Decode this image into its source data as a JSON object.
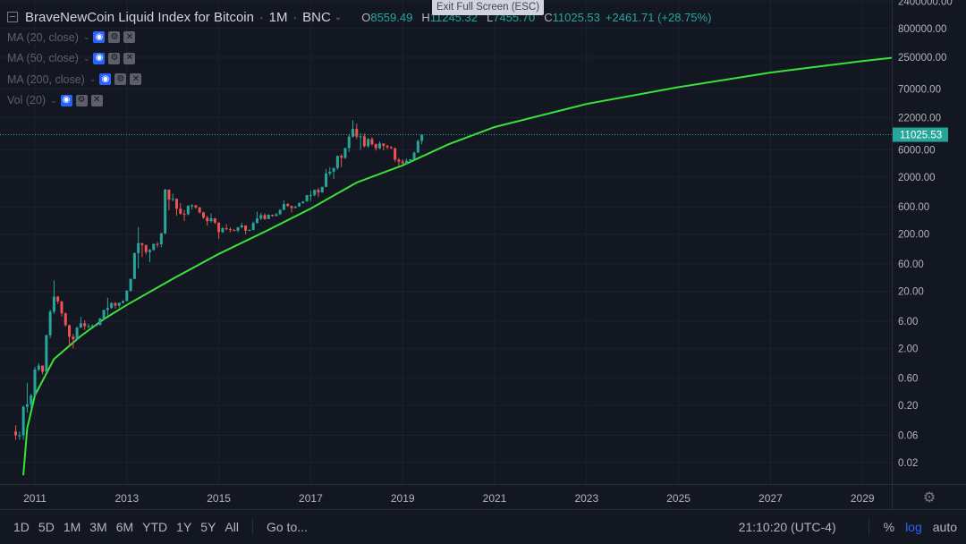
{
  "legend": {
    "symbol": "BraveNewCoin Liquid Index for Bitcoin",
    "interval": "1M",
    "exchange": "BNC",
    "open_label": "O",
    "open": "8559.49",
    "high_label": "H",
    "high": "11245.32",
    "low_label": "L",
    "low": "7455.70",
    "close_label": "C",
    "close": "11025.53",
    "change": "+2461.71 (+28.75%)",
    "studies": [
      "MA (20, close)",
      "MA (50, close)",
      "MA (200, close)",
      "Vol (20)"
    ]
  },
  "tooltip": "Exit Full Screen (ESC)",
  "price_axis": {
    "labels": [
      "2400000.00",
      "800000.00",
      "250000.00",
      "70000.00",
      "22000.00",
      "6000.00",
      "2000.00",
      "600.00",
      "200.00",
      "60.00",
      "20.00",
      "6.00",
      "2.00",
      "0.60",
      "0.20",
      "0.06",
      "0.02"
    ],
    "current_price": "11025.53"
  },
  "time_axis": {
    "labels": [
      "2011",
      "2013",
      "2015",
      "2017",
      "2019",
      "2021",
      "2023",
      "2025",
      "2027",
      "2029"
    ]
  },
  "bottom_bar": {
    "ranges": [
      "1D",
      "5D",
      "1M",
      "3M",
      "6M",
      "YTD",
      "1Y",
      "5Y",
      "All"
    ],
    "goto": "Go to...",
    "clock": "21:10:20 (UTC-4)",
    "percent": "%",
    "log": "log",
    "auto": "auto"
  },
  "colors": {
    "background": "#131722",
    "up": "#26a69a",
    "down": "#ef5350",
    "curve": "#39e339",
    "accent": "#2962ff"
  },
  "chart_data": {
    "type": "candlestick",
    "scale": "log",
    "interval": "1M",
    "x_range": [
      "2010-07",
      "2029-12"
    ],
    "y_range": [
      0.01,
      2400000
    ],
    "current_price": 11025.53,
    "candles": [
      {
        "t": "2010-08",
        "o": 0.07,
        "h": 0.09,
        "l": 0.05,
        "c": 0.06
      },
      {
        "t": "2010-09",
        "o": 0.06,
        "h": 0.07,
        "l": 0.05,
        "c": 0.06
      },
      {
        "t": "2010-10",
        "o": 0.06,
        "h": 0.2,
        "l": 0.05,
        "c": 0.19
      },
      {
        "t": "2010-11",
        "o": 0.19,
        "h": 0.5,
        "l": 0.15,
        "c": 0.21
      },
      {
        "t": "2010-12",
        "o": 0.21,
        "h": 0.32,
        "l": 0.18,
        "c": 0.3
      },
      {
        "t": "2011-01",
        "o": 0.3,
        "h": 0.95,
        "l": 0.29,
        "c": 0.85
      },
      {
        "t": "2011-02",
        "o": 0.85,
        "h": 1.1,
        "l": 0.8,
        "c": 1.0
      },
      {
        "t": "2011-03",
        "o": 1.0,
        "h": 1.0,
        "l": 0.7,
        "c": 0.78
      },
      {
        "t": "2011-04",
        "o": 0.78,
        "h": 3.5,
        "l": 0.75,
        "c": 3.4
      },
      {
        "t": "2011-05",
        "o": 3.4,
        "h": 9.5,
        "l": 3.0,
        "c": 8.8
      },
      {
        "t": "2011-06",
        "o": 8.8,
        "h": 31,
        "l": 8.0,
        "c": 16.1
      },
      {
        "t": "2011-07",
        "o": 16.1,
        "h": 16.5,
        "l": 12.0,
        "c": 13.3
      },
      {
        "t": "2011-08",
        "o": 13.3,
        "h": 13.5,
        "l": 7.2,
        "c": 8.2
      },
      {
        "t": "2011-09",
        "o": 8.2,
        "h": 8.5,
        "l": 4.8,
        "c": 5.1
      },
      {
        "t": "2011-10",
        "o": 5.1,
        "h": 5.2,
        "l": 2.2,
        "c": 3.2
      },
      {
        "t": "2011-11",
        "o": 3.2,
        "h": 3.6,
        "l": 2.0,
        "c": 2.9
      },
      {
        "t": "2011-12",
        "o": 2.9,
        "h": 4.8,
        "l": 2.8,
        "c": 4.6
      },
      {
        "t": "2012-01",
        "o": 4.6,
        "h": 7.1,
        "l": 4.6,
        "c": 5.5
      },
      {
        "t": "2012-02",
        "o": 5.5,
        "h": 6.2,
        "l": 4.2,
        "c": 4.9
      },
      {
        "t": "2012-03",
        "o": 4.9,
        "h": 5.4,
        "l": 4.5,
        "c": 4.9
      },
      {
        "t": "2012-04",
        "o": 4.9,
        "h": 5.3,
        "l": 4.8,
        "c": 5.0
      },
      {
        "t": "2012-05",
        "o": 5.0,
        "h": 5.2,
        "l": 4.9,
        "c": 5.1
      },
      {
        "t": "2012-06",
        "o": 5.1,
        "h": 6.8,
        "l": 5.1,
        "c": 6.7
      },
      {
        "t": "2012-07",
        "o": 6.7,
        "h": 9.5,
        "l": 6.5,
        "c": 9.4
      },
      {
        "t": "2012-08",
        "o": 9.4,
        "h": 15.4,
        "l": 7.5,
        "c": 10.2
      },
      {
        "t": "2012-09",
        "o": 10.2,
        "h": 12.9,
        "l": 9.8,
        "c": 12.4
      },
      {
        "t": "2012-10",
        "o": 12.4,
        "h": 13.0,
        "l": 9.9,
        "c": 11.2
      },
      {
        "t": "2012-11",
        "o": 11.2,
        "h": 12.6,
        "l": 10.2,
        "c": 12.6
      },
      {
        "t": "2012-12",
        "o": 12.6,
        "h": 13.9,
        "l": 12.2,
        "c": 13.5
      },
      {
        "t": "2013-01",
        "o": 13.5,
        "h": 21.0,
        "l": 13.2,
        "c": 20.4
      },
      {
        "t": "2013-02",
        "o": 20.4,
        "h": 33.0,
        "l": 19.5,
        "c": 33.0
      },
      {
        "t": "2013-03",
        "o": 33.0,
        "h": 95.0,
        "l": 32.5,
        "c": 93.0
      },
      {
        "t": "2013-04",
        "o": 93.0,
        "h": 266,
        "l": 50,
        "c": 139
      },
      {
        "t": "2013-05",
        "o": 139,
        "h": 140,
        "l": 79,
        "c": 129
      },
      {
        "t": "2013-06",
        "o": 129,
        "h": 130,
        "l": 88,
        "c": 97
      },
      {
        "t": "2013-07",
        "o": 97,
        "h": 110,
        "l": 65,
        "c": 106
      },
      {
        "t": "2013-08",
        "o": 106,
        "h": 137,
        "l": 102,
        "c": 135
      },
      {
        "t": "2013-09",
        "o": 135,
        "h": 146,
        "l": 117,
        "c": 133
      },
      {
        "t": "2013-10",
        "o": 133,
        "h": 213,
        "l": 118,
        "c": 206
      },
      {
        "t": "2013-11",
        "o": 206,
        "h": 1240,
        "l": 198,
        "c": 1205
      },
      {
        "t": "2013-12",
        "o": 1205,
        "h": 1160,
        "l": 522,
        "c": 805
      },
      {
        "t": "2014-01",
        "o": 805,
        "h": 1020,
        "l": 750,
        "c": 830
      },
      {
        "t": "2014-02",
        "o": 830,
        "h": 840,
        "l": 420,
        "c": 560
      },
      {
        "t": "2014-03",
        "o": 560,
        "h": 700,
        "l": 440,
        "c": 455
      },
      {
        "t": "2014-04",
        "o": 455,
        "h": 530,
        "l": 340,
        "c": 445
      },
      {
        "t": "2014-05",
        "o": 445,
        "h": 640,
        "l": 430,
        "c": 630
      },
      {
        "t": "2014-06",
        "o": 630,
        "h": 670,
        "l": 540,
        "c": 640
      },
      {
        "t": "2014-07",
        "o": 640,
        "h": 640,
        "l": 560,
        "c": 585
      },
      {
        "t": "2014-08",
        "o": 585,
        "h": 600,
        "l": 460,
        "c": 480
      },
      {
        "t": "2014-09",
        "o": 480,
        "h": 490,
        "l": 370,
        "c": 388
      },
      {
        "t": "2014-10",
        "o": 388,
        "h": 420,
        "l": 280,
        "c": 338
      },
      {
        "t": "2014-11",
        "o": 338,
        "h": 460,
        "l": 320,
        "c": 378
      },
      {
        "t": "2014-12",
        "o": 378,
        "h": 383,
        "l": 300,
        "c": 318
      },
      {
        "t": "2015-01",
        "o": 318,
        "h": 320,
        "l": 165,
        "c": 217
      },
      {
        "t": "2015-02",
        "o": 217,
        "h": 265,
        "l": 210,
        "c": 254
      },
      {
        "t": "2015-03",
        "o": 254,
        "h": 300,
        "l": 235,
        "c": 244
      },
      {
        "t": "2015-04",
        "o": 244,
        "h": 262,
        "l": 215,
        "c": 236
      },
      {
        "t": "2015-05",
        "o": 236,
        "h": 246,
        "l": 225,
        "c": 230
      },
      {
        "t": "2015-06",
        "o": 230,
        "h": 267,
        "l": 215,
        "c": 263
      },
      {
        "t": "2015-07",
        "o": 263,
        "h": 318,
        "l": 253,
        "c": 284
      },
      {
        "t": "2015-08",
        "o": 284,
        "h": 285,
        "l": 199,
        "c": 230
      },
      {
        "t": "2015-09",
        "o": 230,
        "h": 244,
        "l": 226,
        "c": 236
      },
      {
        "t": "2015-10",
        "o": 236,
        "h": 332,
        "l": 235,
        "c": 313
      },
      {
        "t": "2015-11",
        "o": 313,
        "h": 495,
        "l": 308,
        "c": 377
      },
      {
        "t": "2015-12",
        "o": 377,
        "h": 467,
        "l": 350,
        "c": 430
      },
      {
        "t": "2016-01",
        "o": 430,
        "h": 462,
        "l": 355,
        "c": 368
      },
      {
        "t": "2016-02",
        "o": 368,
        "h": 445,
        "l": 365,
        "c": 437
      },
      {
        "t": "2016-03",
        "o": 437,
        "h": 440,
        "l": 403,
        "c": 416
      },
      {
        "t": "2016-04",
        "o": 416,
        "h": 467,
        "l": 411,
        "c": 448
      },
      {
        "t": "2016-05",
        "o": 448,
        "h": 550,
        "l": 435,
        "c": 531
      },
      {
        "t": "2016-06",
        "o": 531,
        "h": 780,
        "l": 528,
        "c": 673
      },
      {
        "t": "2016-07",
        "o": 673,
        "h": 700,
        "l": 600,
        "c": 624
      },
      {
        "t": "2016-08",
        "o": 624,
        "h": 630,
        "l": 480,
        "c": 573
      },
      {
        "t": "2016-09",
        "o": 573,
        "h": 620,
        "l": 568,
        "c": 608
      },
      {
        "t": "2016-10",
        "o": 608,
        "h": 720,
        "l": 604,
        "c": 700
      },
      {
        "t": "2016-11",
        "o": 700,
        "h": 760,
        "l": 680,
        "c": 745
      },
      {
        "t": "2016-12",
        "o": 745,
        "h": 970,
        "l": 745,
        "c": 963
      },
      {
        "t": "2017-01",
        "o": 963,
        "h": 1150,
        "l": 760,
        "c": 966
      },
      {
        "t": "2017-02",
        "o": 966,
        "h": 1210,
        "l": 920,
        "c": 1190
      },
      {
        "t": "2017-03",
        "o": 1190,
        "h": 1290,
        "l": 890,
        "c": 1080
      },
      {
        "t": "2017-04",
        "o": 1080,
        "h": 1350,
        "l": 1060,
        "c": 1348
      },
      {
        "t": "2017-05",
        "o": 1348,
        "h": 2760,
        "l": 1330,
        "c": 2300
      },
      {
        "t": "2017-06",
        "o": 2300,
        "h": 2980,
        "l": 2100,
        "c": 2480
      },
      {
        "t": "2017-07",
        "o": 2480,
        "h": 2900,
        "l": 1840,
        "c": 2875
      },
      {
        "t": "2017-08",
        "o": 2875,
        "h": 4750,
        "l": 2690,
        "c": 4700
      },
      {
        "t": "2017-09",
        "o": 4700,
        "h": 5000,
        "l": 2980,
        "c": 4340
      },
      {
        "t": "2017-10",
        "o": 4340,
        "h": 6470,
        "l": 4150,
        "c": 6450
      },
      {
        "t": "2017-11",
        "o": 6450,
        "h": 11400,
        "l": 5510,
        "c": 10200
      },
      {
        "t": "2017-12",
        "o": 10200,
        "h": 19800,
        "l": 9800,
        "c": 13900
      },
      {
        "t": "2018-01",
        "o": 13900,
        "h": 17200,
        "l": 9200,
        "c": 10200
      },
      {
        "t": "2018-02",
        "o": 10200,
        "h": 11700,
        "l": 6000,
        "c": 10300
      },
      {
        "t": "2018-03",
        "o": 10300,
        "h": 11500,
        "l": 6600,
        "c": 6900
      },
      {
        "t": "2018-04",
        "o": 6900,
        "h": 9700,
        "l": 6500,
        "c": 9200
      },
      {
        "t": "2018-05",
        "o": 9200,
        "h": 9950,
        "l": 7100,
        "c": 7500
      },
      {
        "t": "2018-06",
        "o": 7500,
        "h": 7700,
        "l": 5800,
        "c": 6400
      },
      {
        "t": "2018-07",
        "o": 6400,
        "h": 8450,
        "l": 6100,
        "c": 7730
      },
      {
        "t": "2018-08",
        "o": 7730,
        "h": 7750,
        "l": 5880,
        "c": 7030
      },
      {
        "t": "2018-09",
        "o": 7030,
        "h": 7400,
        "l": 6150,
        "c": 6630
      },
      {
        "t": "2018-10",
        "o": 6630,
        "h": 7000,
        "l": 6200,
        "c": 6370
      },
      {
        "t": "2018-11",
        "o": 6370,
        "h": 6550,
        "l": 3700,
        "c": 4030
      },
      {
        "t": "2018-12",
        "o": 4030,
        "h": 4300,
        "l": 3150,
        "c": 3740
      },
      {
        "t": "2019-01",
        "o": 3740,
        "h": 4100,
        "l": 3400,
        "c": 3460
      },
      {
        "t": "2019-02",
        "o": 3460,
        "h": 4200,
        "l": 3400,
        "c": 3860
      },
      {
        "t": "2019-03",
        "o": 3860,
        "h": 4100,
        "l": 3700,
        "c": 4100
      },
      {
        "t": "2019-04",
        "o": 4100,
        "h": 5600,
        "l": 4050,
        "c": 5350
      },
      {
        "t": "2019-05",
        "o": 5350,
        "h": 9000,
        "l": 5300,
        "c": 8560
      },
      {
        "t": "2019-06",
        "o": 8559.49,
        "h": 11245.32,
        "l": 7455.7,
        "c": 11025.53
      }
    ],
    "curve_points": [
      {
        "t": "2010-10",
        "y": 0.012
      },
      {
        "t": "2010-11",
        "y": 0.08
      },
      {
        "t": "2011-01",
        "y": 0.3
      },
      {
        "t": "2011-06",
        "y": 1.3
      },
      {
        "t": "2012-01",
        "y": 3.3
      },
      {
        "t": "2012-07",
        "y": 6.5
      },
      {
        "t": "2013-01",
        "y": 11.5
      },
      {
        "t": "2014-01",
        "y": 33
      },
      {
        "t": "2015-01",
        "y": 90
      },
      {
        "t": "2016-01",
        "y": 220
      },
      {
        "t": "2017-01",
        "y": 560
      },
      {
        "t": "2018-01",
        "y": 1600
      },
      {
        "t": "2019-01",
        "y": 3200
      },
      {
        "t": "2020-01",
        "y": 7500
      },
      {
        "t": "2021-01",
        "y": 15000
      },
      {
        "t": "2023-01",
        "y": 38000
      },
      {
        "t": "2025-01",
        "y": 75000
      },
      {
        "t": "2027-01",
        "y": 135000
      },
      {
        "t": "2029-01",
        "y": 215000
      },
      {
        "t": "2029-10",
        "y": 250000
      }
    ]
  }
}
